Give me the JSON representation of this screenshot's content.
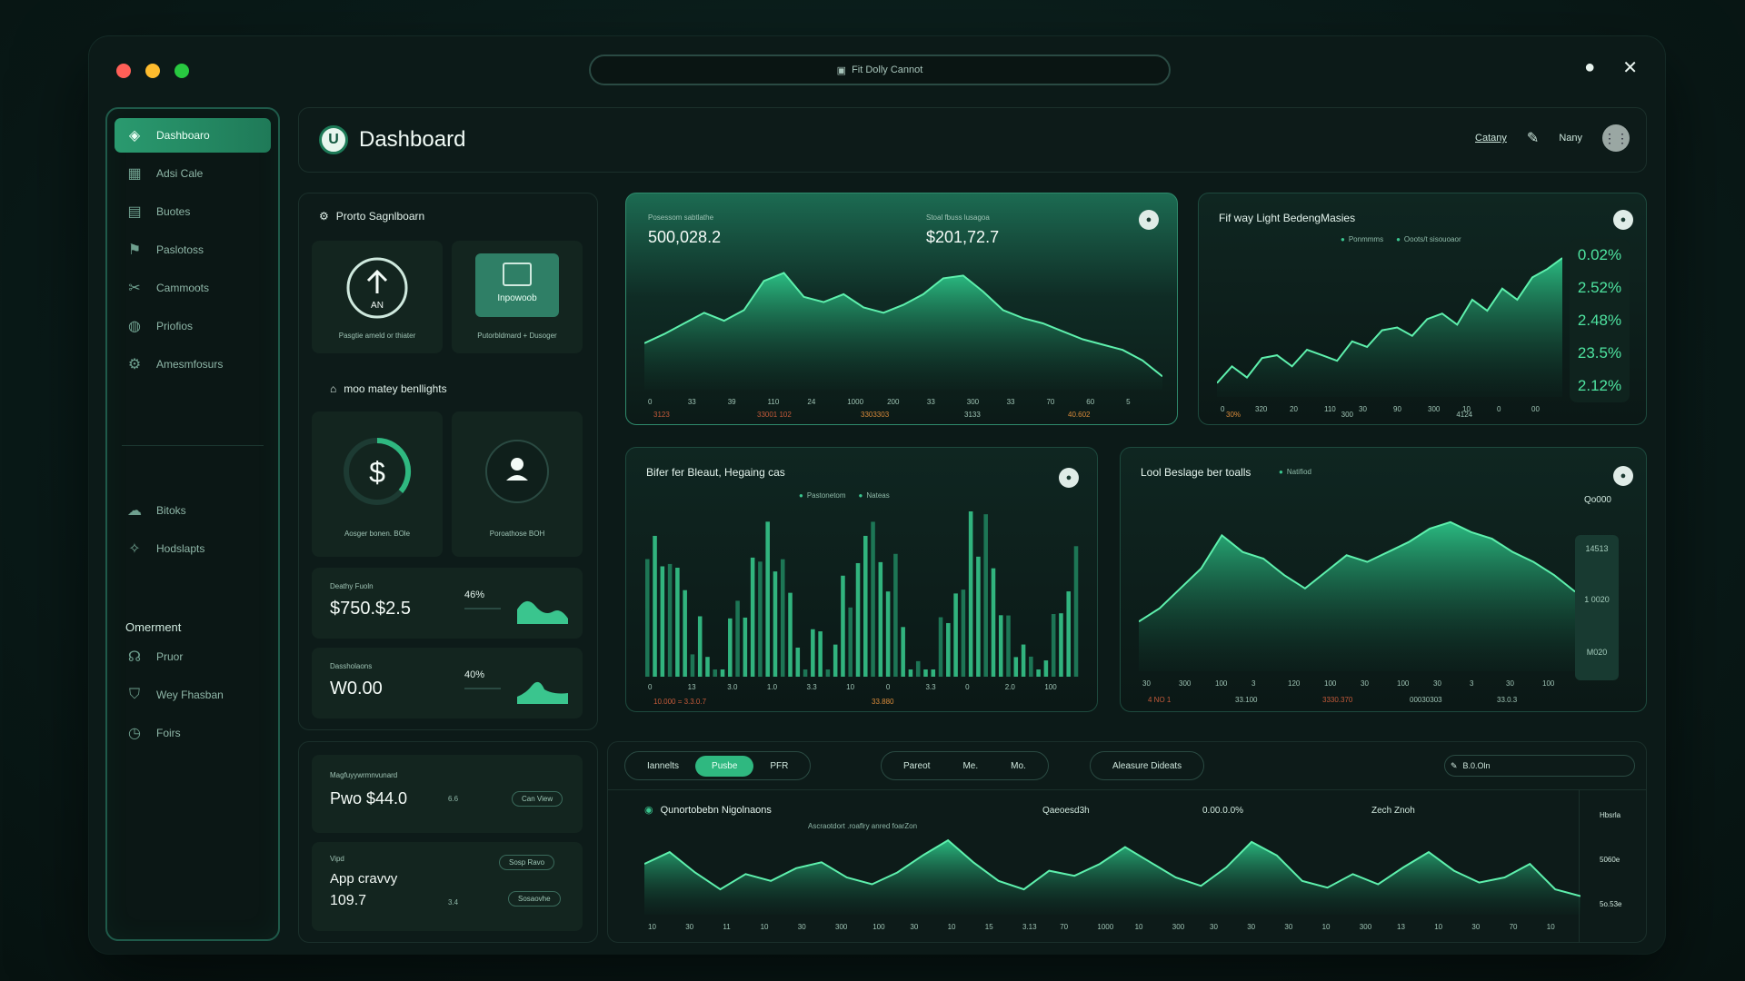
{
  "window": {
    "url_text": "Fit Dolly Cannot"
  },
  "sidebar": {
    "items": [
      {
        "label": "Dashboaro",
        "icon": "dashboard-icon"
      },
      {
        "label": "Adsi Cale",
        "icon": "calendar-icon"
      },
      {
        "label": "Buotes",
        "icon": "document-icon"
      },
      {
        "label": "Paslotoss",
        "icon": "run-icon"
      },
      {
        "label": "Cammoots",
        "icon": "comments-icon"
      },
      {
        "label": "Priofios",
        "icon": "globe-icon"
      },
      {
        "label": "Amesmfosurs",
        "icon": "settings-icon"
      }
    ],
    "items2": [
      {
        "label": "Bitoks",
        "icon": "cloud-icon"
      },
      {
        "label": "Hodslapts",
        "icon": "star-icon"
      }
    ],
    "section_title": "Omerment",
    "items3": [
      {
        "label": "Pruor",
        "icon": "chat-icon"
      },
      {
        "label": "Wey Fhasban",
        "icon": "shield-icon"
      },
      {
        "label": "Foirs",
        "icon": "clock-icon"
      }
    ]
  },
  "header": {
    "title": "Dashboard",
    "category": "Catany",
    "user": "Nany"
  },
  "left": {
    "section1_title": "Prorto Sagnlboarn",
    "tile1_center": "AN",
    "tile1_caption": "Pasgtie ameld or thiater",
    "tile2_center": "Inpowoob",
    "tile2_caption": "Putorbldmard + Dusoger",
    "section2_title": "moo matey benllights",
    "tile3_caption": "Aosger bonen. BOle",
    "tile4_caption": "Poroathose BOH",
    "stat1": {
      "label": "Deathy Fuoln",
      "value": "$750.$2.5",
      "pct": "46%"
    },
    "stat2": {
      "label": "Dassholaons",
      "value": "W0.00",
      "pct": "40%"
    }
  },
  "chart1": {
    "label1": "Posessom sabtlathe",
    "value1": "500,028.2",
    "label2": "Stoal fbuss lusagoa",
    "value2": "$201,72.7",
    "ticks": [
      "0",
      "33",
      "39",
      "110",
      "24",
      "1000",
      "200",
      "33",
      "300",
      "33",
      "70",
      "60",
      "5"
    ],
    "footer": [
      "3123",
      "33001 102",
      "3303303",
      "3133",
      "40.602"
    ]
  },
  "chart2": {
    "title": "Fif way Light BedengMasies",
    "legend": [
      "Ponmmms",
      "Ooots/t sisouoaor"
    ],
    "pcts": [
      "0.02%",
      "2.52%",
      "2.48%",
      "23.5%",
      "2.12%"
    ],
    "ticks": [
      "0",
      "320",
      "20",
      "110",
      "30",
      "90",
      "300",
      "10",
      "0",
      "00"
    ],
    "footer": [
      "30%",
      "300",
      "4124"
    ]
  },
  "chart3": {
    "title": "Bifer fer Bleaut, Hegaing cas",
    "legend": [
      "Pastonetom",
      "Nateas"
    ],
    "ticks": [
      "0",
      "13",
      "3.0",
      "1.0",
      "3.3",
      "10",
      "0",
      "3.3",
      "0",
      "2.0",
      "100"
    ],
    "footer": [
      "10.000 = 3.3.0.7",
      "33.880"
    ]
  },
  "chart4": {
    "title": "Lool Beslage ber toalls",
    "legend": [
      "Natifiod"
    ],
    "top_value": "Qo000",
    "side_values": [
      "14513",
      "1 0020",
      "M020"
    ],
    "ticks": [
      "30",
      "300",
      "100",
      "3",
      "120",
      "100",
      "30",
      "100",
      "30",
      "3",
      "30",
      "100"
    ],
    "footer": [
      "4 NO 1",
      "33.100",
      "3330.370",
      "00030303",
      "33.0.3"
    ]
  },
  "bottom_left": {
    "card1_label": "Magfuyywrmnvunard",
    "card1_value": "Pwo $44.0",
    "card1_small": "6.6",
    "card1_btn": "Can View",
    "card2_label": "Vipd",
    "card2_title": "App cravvy",
    "card2_value": "109.7",
    "card2_small": "3.4",
    "card2_btn1": "Sosp Ravo",
    "card2_btn2": "Sosaovhe"
  },
  "bottom": {
    "tabs": [
      "Iannelts",
      "Pusbe",
      "PFR"
    ],
    "tabs2": [
      "Pareot",
      "Me.",
      "Mo."
    ],
    "filter": "Aleasure Dideats",
    "search": "B.0.Oln",
    "chart_title": "Qunortobebn Nigolnaons",
    "subtitle": "Ascraotdort .roaflry anred foarZon",
    "col2": "Qaeoesd3h",
    "col3": "0.00.0.0%",
    "col4": "Zech Znoh",
    "right_labels": [
      "Hbsrla",
      "5060e",
      "5o.53e"
    ],
    "ticks": [
      "10",
      "30",
      "11",
      "10",
      "30",
      "300",
      "100",
      "30",
      "10",
      "15",
      "3.13",
      "70",
      "1000",
      "10",
      "300",
      "30",
      "30",
      "30",
      "10",
      "300",
      "13",
      "10",
      "30",
      "70",
      "10"
    ]
  },
  "colors": {
    "accent": "#2fb880",
    "line": "#47d99a",
    "bg": "#0c1a18"
  }
}
